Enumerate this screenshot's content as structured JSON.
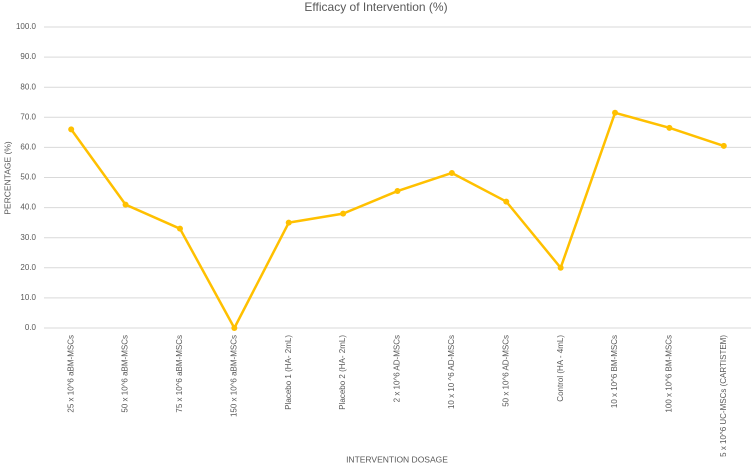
{
  "chart_data": {
    "type": "line",
    "title": "Efficacy of Intervention (%)",
    "x_label": "INTERVENTION DOSAGE",
    "y_label": "PERCENTAGE (%)",
    "categories": [
      "25 x 10^6 aBM-MSCs",
      "50 x 10^6 aBM-MSCs",
      "75 x 10^6 aBM-MSCs",
      "150 x 10^6 aBM-MSCs",
      "Placebo 1 (HA- 2mL)",
      "Placebo 2 (HA- 2mL)",
      "2 x 10^6 AD-MSCs",
      "10 x 10 ^6 AD-MSCs",
      "50 x 10^6 AD-MSCs",
      "Control (HA - 4mL)",
      "10 x 10^6 BM-MSCs",
      "100 x 10^6 BM-MSCs",
      "5 x 10^6 UC-MSCs (CARTISTEM)"
    ],
    "series": [
      {
        "name": "Efficacy",
        "color": "#ffc000",
        "values": [
          66,
          41,
          33,
          0,
          35,
          38,
          45.5,
          51.5,
          42,
          20,
          71.5,
          66.5,
          60.5
        ]
      }
    ],
    "ylim": [
      0,
      100
    ],
    "yticks": [
      {
        "value": 0,
        "label": "0.0"
      },
      {
        "value": 10,
        "label": "10.0"
      },
      {
        "value": 20,
        "label": "20.0"
      },
      {
        "value": 30,
        "label": "30.0"
      },
      {
        "value": 40,
        "label": "40.0"
      },
      {
        "value": 50,
        "label": "50.0"
      },
      {
        "value": 60,
        "label": "60.0"
      },
      {
        "value": 70,
        "label": "70.0"
      },
      {
        "value": 80,
        "label": "80.0"
      },
      {
        "value": 90,
        "label": "90.0"
      },
      {
        "value": 100,
        "label": "100.0"
      }
    ],
    "grid": true
  }
}
